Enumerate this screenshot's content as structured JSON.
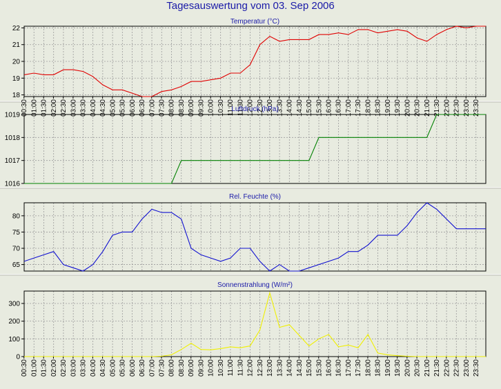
{
  "title": "Tagesauswertung vom 03. Sep 2006",
  "colors": {
    "background": "#e8ebe0",
    "title": "#1a1aa8",
    "grid": "#9a9a9a",
    "temperature": "#e00000",
    "pressure": "#008000",
    "humidity": "#1010d0",
    "radiation": "#f0f000"
  },
  "chart_data": [
    {
      "type": "line",
      "title": "Temperatur (°C)",
      "x_tick_labels": [
        "00:30",
        "01:00",
        "01:30",
        "02:00",
        "02:30",
        "03:00",
        "03:30",
        "04:00",
        "04:30",
        "05:00",
        "05:30",
        "06:00",
        "06:30",
        "07:00",
        "07:30",
        "08:00",
        "08:30",
        "09:00",
        "09:30",
        "10:00",
        "10:30",
        "11:00",
        "11:30",
        "12:00",
        "12:30",
        "13:00",
        "13:30",
        "14:00",
        "14:30",
        "15:00",
        "15:30",
        "16:00",
        "16:30",
        "17:00",
        "17:30",
        "18:00",
        "18:30",
        "19:00",
        "19:30",
        "20:00",
        "20:30",
        "21:00",
        "21:30",
        "22:00",
        "22:30",
        "23:00",
        "23:30"
      ],
      "y_ticks": [
        18,
        19,
        20,
        21,
        22
      ],
      "ylim": [
        17.9,
        22.1
      ],
      "grid": true,
      "color": "#e00000",
      "values": [
        19.2,
        19.3,
        19.2,
        19.2,
        19.5,
        19.5,
        19.4,
        19.1,
        18.6,
        18.3,
        18.3,
        18.1,
        17.9,
        17.9,
        18.2,
        18.3,
        18.5,
        18.8,
        18.8,
        18.9,
        19.0,
        19.3,
        19.3,
        19.8,
        21.0,
        21.5,
        21.2,
        21.3,
        21.3,
        21.3,
        21.6,
        21.6,
        21.7,
        21.6,
        21.9,
        21.9,
        21.7,
        21.8,
        21.9,
        21.8,
        21.4,
        21.2,
        21.6,
        21.9,
        22.1,
        22.0,
        22.1,
        22.1
      ]
    },
    {
      "type": "line",
      "title": "Luftdruck (hPa)",
      "x_tick_labels": [],
      "y_ticks": [
        1016,
        1017,
        1018,
        1019
      ],
      "ylim": [
        1016,
        1019
      ],
      "grid": true,
      "color": "#008000",
      "values": [
        1016,
        1016,
        1016,
        1016,
        1016,
        1016,
        1016,
        1016,
        1016,
        1016,
        1016,
        1016,
        1016,
        1016,
        1016,
        1016,
        1017,
        1017,
        1017,
        1017,
        1017,
        1017,
        1017,
        1017,
        1017,
        1017,
        1017,
        1017,
        1017,
        1017,
        1018,
        1018,
        1018,
        1018,
        1018,
        1018,
        1018,
        1018,
        1018,
        1018,
        1018,
        1018,
        1019,
        1019,
        1019,
        1019,
        1019,
        1019
      ]
    },
    {
      "type": "line",
      "title": "Rel. Feuchte (%)",
      "x_tick_labels": [],
      "y_ticks": [
        65,
        70,
        75,
        80
      ],
      "ylim": [
        63,
        84
      ],
      "grid": true,
      "color": "#1010d0",
      "values": [
        66,
        67,
        68,
        69,
        65,
        64,
        63,
        65,
        69,
        74,
        75,
        75,
        79,
        82,
        81,
        81,
        79,
        70,
        68,
        67,
        66,
        67,
        70,
        70,
        66,
        63,
        65,
        63,
        63,
        64,
        65,
        66,
        67,
        69,
        69,
        71,
        74,
        74,
        74,
        77,
        81,
        84,
        82,
        79,
        76,
        76,
        76,
        76
      ]
    },
    {
      "type": "line",
      "title": "Sonnenstrahlung (W/m²)",
      "x_tick_labels": [
        "00:30",
        "01:00",
        "01:30",
        "02:00",
        "02:30",
        "03:00",
        "03:30",
        "04:00",
        "04:30",
        "05:00",
        "05:30",
        "06:00",
        "06:30",
        "07:00",
        "07:30",
        "08:00",
        "08:30",
        "09:00",
        "09:30",
        "10:00",
        "10:30",
        "11:00",
        "11:30",
        "12:00",
        "12:30",
        "13:00",
        "13:30",
        "14:00",
        "14:30",
        "15:00",
        "15:30",
        "16:00",
        "16:30",
        "17:00",
        "17:30",
        "18:00",
        "18:30",
        "19:00",
        "19:30",
        "20:00",
        "20:30",
        "21:00",
        "21:30",
        "22:00",
        "22:30",
        "23:00",
        "23:30"
      ],
      "y_ticks": [
        0,
        100,
        200,
        300
      ],
      "ylim": [
        0,
        370
      ],
      "grid": true,
      "color": "#f0f000",
      "values": [
        0,
        0,
        0,
        0,
        0,
        0,
        0,
        0,
        0,
        0,
        0,
        0,
        0,
        0,
        2,
        10,
        40,
        75,
        40,
        38,
        45,
        55,
        50,
        60,
        150,
        360,
        165,
        180,
        120,
        60,
        100,
        125,
        55,
        65,
        50,
        125,
        20,
        10,
        5,
        2,
        0,
        0,
        0,
        0,
        0,
        0,
        0,
        0
      ]
    }
  ]
}
